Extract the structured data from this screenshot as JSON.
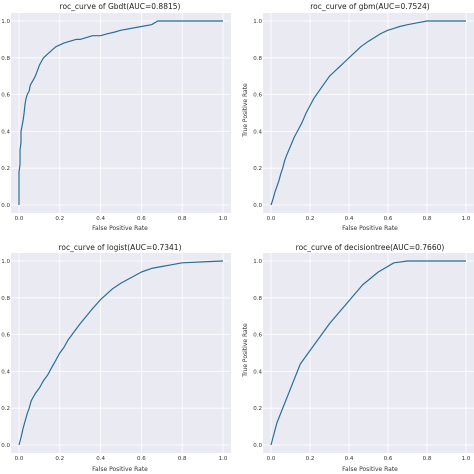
{
  "figure_background": "#ffffff",
  "plot_background": "#eaeaf2",
  "grid_color": "#ffffff",
  "line_color": "#2a6f97",
  "chart_data": [
    {
      "type": "line",
      "title": "roc_curve of Gbdt(AUC=0.8815)",
      "xlabel": "False Positive Rate",
      "ylabel": "",
      "xlim": [
        0,
        1
      ],
      "ylim": [
        0,
        1
      ],
      "xticks": [
        "0.0",
        "0.2",
        "0.4",
        "0.6",
        "0.8",
        "1.0"
      ],
      "yticks": [
        "0.0",
        "0.2",
        "0.4",
        "0.6",
        "0.8",
        "1.0"
      ],
      "grid": true,
      "x": [
        0,
        0,
        0.005,
        0.005,
        0.01,
        0.01,
        0.015,
        0.02,
        0.025,
        0.03,
        0.035,
        0.04,
        0.05,
        0.055,
        0.06,
        0.07,
        0.08,
        0.09,
        0.1,
        0.11,
        0.12,
        0.13,
        0.14,
        0.16,
        0.18,
        0.2,
        0.22,
        0.25,
        0.28,
        0.3,
        0.33,
        0.36,
        0.4,
        0.43,
        0.47,
        0.5,
        0.55,
        0.6,
        0.65,
        0.68,
        1.0
      ],
      "y": [
        0,
        0.18,
        0.22,
        0.3,
        0.34,
        0.4,
        0.43,
        0.46,
        0.5,
        0.55,
        0.58,
        0.6,
        0.62,
        0.65,
        0.66,
        0.68,
        0.7,
        0.73,
        0.76,
        0.78,
        0.8,
        0.81,
        0.82,
        0.84,
        0.86,
        0.87,
        0.88,
        0.89,
        0.9,
        0.9,
        0.91,
        0.92,
        0.92,
        0.93,
        0.94,
        0.95,
        0.96,
        0.97,
        0.98,
        1.0,
        1.0
      ]
    },
    {
      "type": "line",
      "title": "roc_curve of gbm(AUC=0.7524)",
      "xlabel": "False Positive Rate",
      "ylabel": "True Positive Rate",
      "xlim": [
        0,
        1
      ],
      "ylim": [
        0,
        1
      ],
      "xticks": [
        "0.0",
        "0.2",
        "0.4",
        "0.6",
        "0.8",
        "1.0"
      ],
      "yticks": [
        "0.0",
        "0.2",
        "0.4",
        "0.6",
        "0.8",
        "1.0"
      ],
      "grid": true,
      "x": [
        0,
        0.01,
        0.02,
        0.03,
        0.04,
        0.05,
        0.06,
        0.07,
        0.08,
        0.1,
        0.12,
        0.14,
        0.16,
        0.18,
        0.2,
        0.22,
        0.24,
        0.26,
        0.28,
        0.3,
        0.32,
        0.35,
        0.38,
        0.4,
        0.43,
        0.46,
        0.5,
        0.53,
        0.56,
        0.6,
        0.63,
        0.66,
        0.7,
        0.75,
        0.8,
        0.85,
        0.9,
        1.0
      ],
      "y": [
        0,
        0.03,
        0.07,
        0.1,
        0.13,
        0.17,
        0.2,
        0.24,
        0.27,
        0.32,
        0.37,
        0.41,
        0.45,
        0.5,
        0.54,
        0.58,
        0.61,
        0.64,
        0.67,
        0.7,
        0.72,
        0.75,
        0.78,
        0.8,
        0.83,
        0.86,
        0.89,
        0.91,
        0.93,
        0.95,
        0.96,
        0.97,
        0.98,
        0.99,
        1.0,
        1.0,
        1.0,
        1.0
      ]
    },
    {
      "type": "line",
      "title": "roc_curve of logist(AUC=0.7341)",
      "xlabel": "False Positive Rate",
      "ylabel": "",
      "xlim": [
        0,
        1
      ],
      "ylim": [
        0,
        1
      ],
      "xticks": [
        "0.0",
        "0.2",
        "0.4",
        "0.6",
        "0.8",
        "1.0"
      ],
      "yticks": [
        "0.0",
        "0.2",
        "0.4",
        "0.6",
        "0.8",
        "1.0"
      ],
      "grid": true,
      "x": [
        0,
        0.01,
        0.02,
        0.03,
        0.04,
        0.05,
        0.06,
        0.08,
        0.1,
        0.12,
        0.14,
        0.16,
        0.18,
        0.2,
        0.22,
        0.24,
        0.26,
        0.28,
        0.3,
        0.33,
        0.36,
        0.4,
        0.43,
        0.46,
        0.5,
        0.55,
        0.6,
        0.65,
        0.7,
        0.75,
        0.8,
        0.9,
        1.0
      ],
      "y": [
        0,
        0.04,
        0.09,
        0.13,
        0.17,
        0.2,
        0.24,
        0.28,
        0.31,
        0.35,
        0.38,
        0.42,
        0.46,
        0.5,
        0.53,
        0.57,
        0.6,
        0.63,
        0.66,
        0.7,
        0.74,
        0.79,
        0.82,
        0.85,
        0.88,
        0.91,
        0.94,
        0.96,
        0.97,
        0.98,
        0.99,
        0.995,
        1.0
      ]
    },
    {
      "type": "line",
      "title": "roc_curve of decisiontree(AUC=0.7660)",
      "xlabel": "False Positive Rate",
      "ylabel": "True Positive Rate",
      "xlim": [
        0,
        1
      ],
      "ylim": [
        0,
        1
      ],
      "xticks": [
        "0.0",
        "0.2",
        "0.4",
        "0.6",
        "0.8",
        "1.0"
      ],
      "yticks": [
        "0.0",
        "0.2",
        "0.4",
        "0.6",
        "0.8",
        "1.0"
      ],
      "grid": true,
      "x": [
        0,
        0.03,
        0.15,
        0.3,
        0.47,
        0.55,
        0.63,
        0.7,
        1.0
      ],
      "y": [
        0,
        0.12,
        0.44,
        0.66,
        0.87,
        0.94,
        0.99,
        1.0,
        1.0
      ]
    }
  ]
}
